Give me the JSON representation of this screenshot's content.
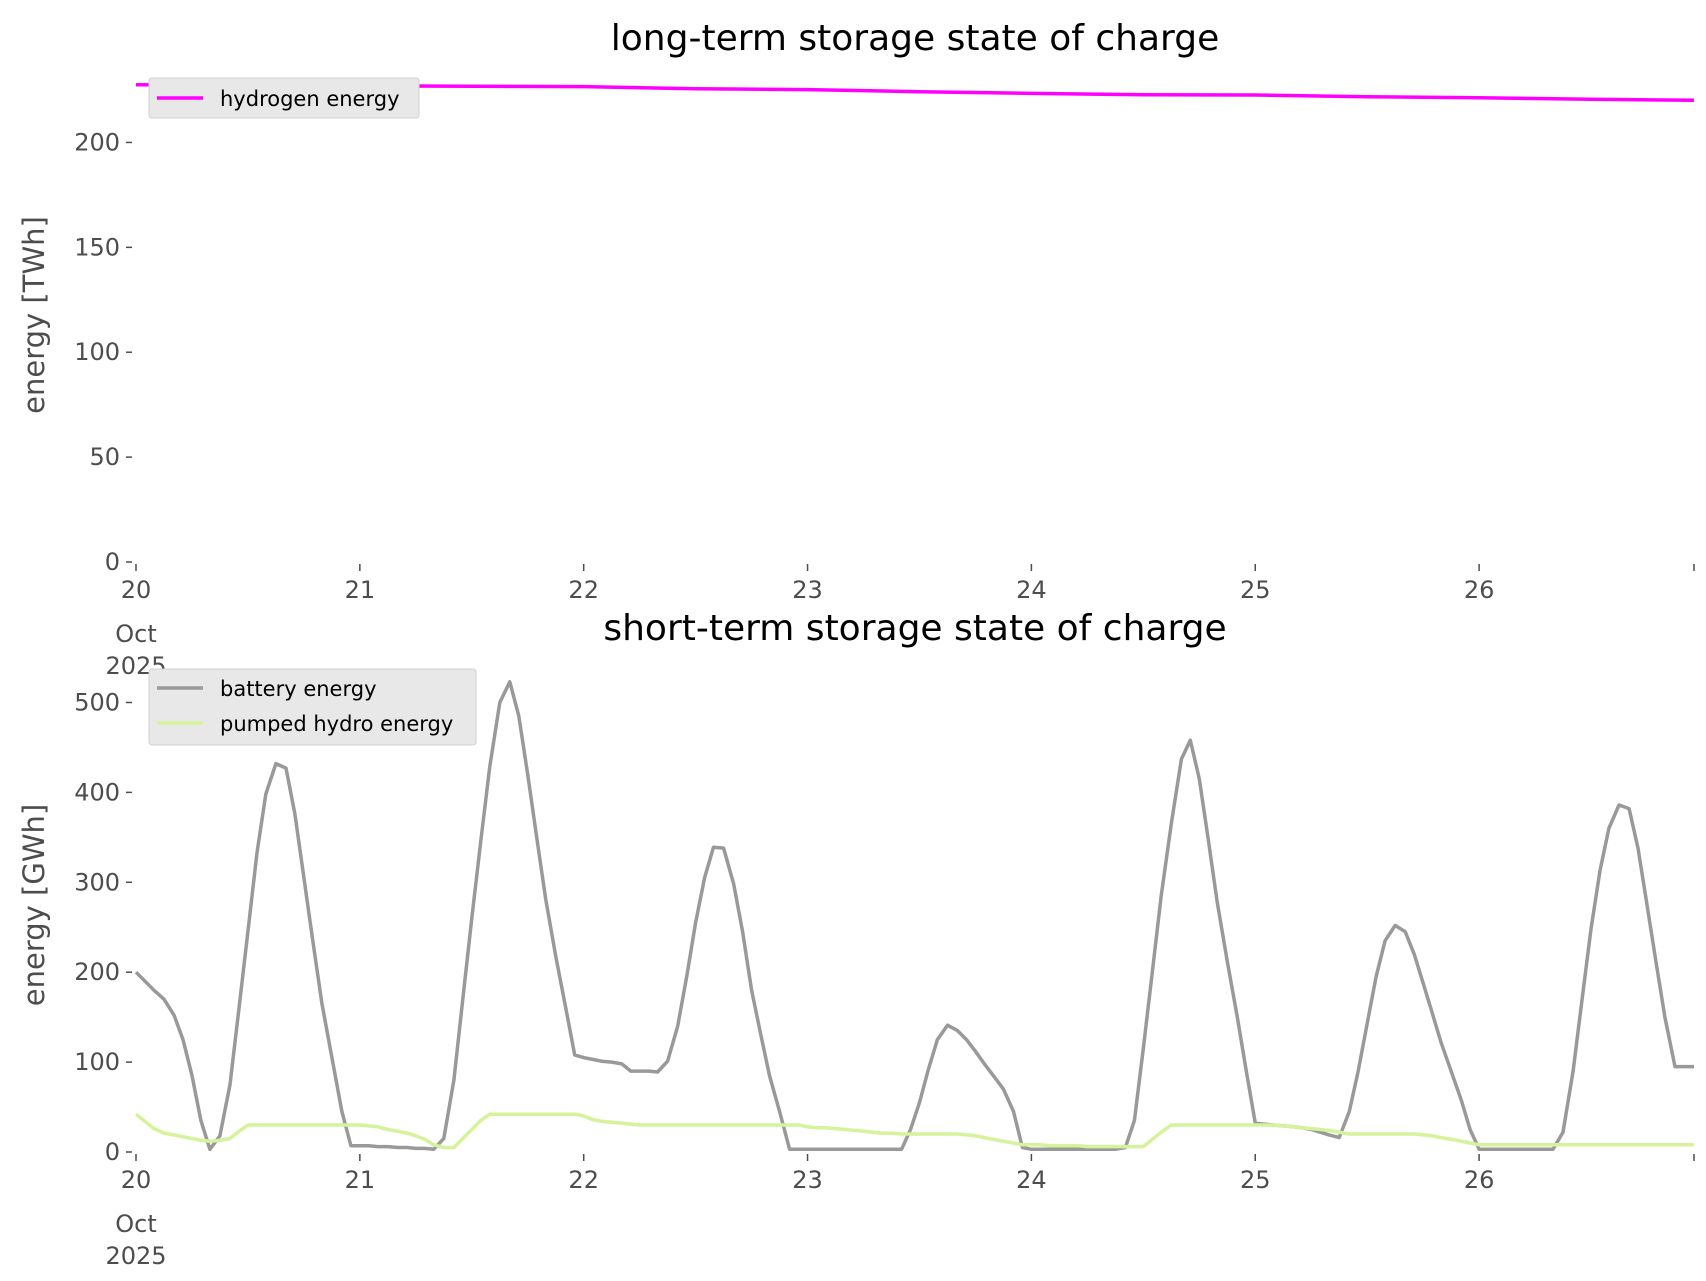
{
  "colors": {
    "hydrogen": "#ff00ff",
    "battery": "#999999",
    "pumped_hydro": "#d4f39a",
    "legend_bg": "#e8e8e8",
    "axis_text": "#4d4d4d"
  },
  "chart_data": [
    {
      "type": "line",
      "title": "long-term storage state of charge",
      "ylabel": "energy [TWh]",
      "ylim": [
        0,
        225
      ],
      "yticks": [
        0,
        50,
        100,
        150,
        200
      ],
      "x_date_ticks": [
        "20",
        "21",
        "22",
        "23",
        "24",
        "25",
        "26",
        ""
      ],
      "x_ticks_pos": [
        0,
        1,
        2,
        3,
        4,
        5,
        6,
        6.96
      ],
      "x_first_tick_sub": [
        "Oct",
        "2025"
      ],
      "xlim": [
        0,
        6.96
      ],
      "legend": "top-left",
      "grid": false,
      "series": [
        {
          "name": "hydrogen energy",
          "color": "hydrogen",
          "x": [
            0,
            0.5,
            1,
            1.5,
            2,
            2.5,
            3,
            3.5,
            4,
            4.5,
            5,
            5.5,
            6,
            6.5,
            6.96
          ],
          "y": [
            227.5,
            227.3,
            227.0,
            226.8,
            226.6,
            225.6,
            225.2,
            224.2,
            223.4,
            222.7,
            222.6,
            221.8,
            221.3,
            220.6,
            220.1
          ]
        }
      ]
    },
    {
      "type": "line",
      "title": "short-term storage state of charge",
      "ylabel": "energy [GWh]",
      "ylim": [
        0,
        525
      ],
      "yticks": [
        0,
        100,
        200,
        300,
        400,
        500
      ],
      "x_date_ticks": [
        "20",
        "21",
        "22",
        "23",
        "24",
        "25",
        "26",
        ""
      ],
      "x_ticks_pos": [
        0,
        1,
        2,
        3,
        4,
        5,
        6,
        6.96
      ],
      "x_first_tick_sub": [
        "Oct",
        "2025"
      ],
      "xlim": [
        0,
        6.96
      ],
      "legend": "top-left",
      "grid": false,
      "series": [
        {
          "name": "battery energy",
          "color": "battery",
          "x": [
            0,
            0.04,
            0.08,
            0.125,
            0.17,
            0.21,
            0.25,
            0.29,
            0.33,
            0.375,
            0.42,
            0.46,
            0.5,
            0.54,
            0.58,
            0.625,
            0.67,
            0.71,
            0.75,
            0.79,
            0.83,
            0.875,
            0.92,
            0.96,
            1.0,
            1.04,
            1.08,
            1.125,
            1.17,
            1.21,
            1.25,
            1.29,
            1.33,
            1.375,
            1.42,
            1.46,
            1.5,
            1.54,
            1.58,
            1.625,
            1.67,
            1.71,
            1.75,
            1.79,
            1.83,
            1.875,
            1.92,
            1.96,
            2.0,
            2.04,
            2.08,
            2.125,
            2.17,
            2.21,
            2.25,
            2.29,
            2.33,
            2.375,
            2.42,
            2.46,
            2.5,
            2.54,
            2.58,
            2.625,
            2.67,
            2.71,
            2.75,
            2.79,
            2.83,
            2.875,
            2.92,
            2.96,
            3.0,
            3.04,
            3.08,
            3.125,
            3.17,
            3.21,
            3.25,
            3.29,
            3.33,
            3.375,
            3.42,
            3.46,
            3.5,
            3.54,
            3.58,
            3.625,
            3.67,
            3.71,
            3.75,
            3.79,
            3.83,
            3.875,
            3.92,
            3.96,
            4.0,
            4.04,
            4.08,
            4.125,
            4.17,
            4.21,
            4.25,
            4.29,
            4.33,
            4.375,
            4.42,
            4.46,
            4.5,
            4.54,
            4.58,
            4.625,
            4.67,
            4.71,
            4.75,
            4.79,
            4.83,
            4.875,
            4.92,
            4.96,
            5.0,
            5.04,
            5.08,
            5.125,
            5.17,
            5.21,
            5.25,
            5.29,
            5.33,
            5.375,
            5.42,
            5.46,
            5.5,
            5.54,
            5.58,
            5.625,
            5.67,
            5.71,
            5.75,
            5.79,
            5.83,
            5.875,
            5.92,
            5.96,
            6.0,
            6.04,
            6.08,
            6.125,
            6.17,
            6.21,
            6.25,
            6.29,
            6.33,
            6.375,
            6.42,
            6.46,
            6.5,
            6.54,
            6.58,
            6.625,
            6.67,
            6.71,
            6.75,
            6.79,
            6.83,
            6.875,
            6.92,
            6.96
          ],
          "y": [
            200,
            190,
            180,
            170,
            152,
            125,
            85,
            35,
            3,
            18,
            75,
            160,
            245,
            332,
            398,
            432,
            427,
            376,
            305,
            235,
            166,
            105,
            45,
            7,
            7,
            7,
            6,
            6,
            5,
            5,
            4,
            4,
            3,
            15,
            80,
            170,
            260,
            345,
            428,
            500,
            523,
            485,
            420,
            350,
            282,
            218,
            160,
            108,
            105,
            103,
            101,
            100,
            98,
            90,
            90,
            90,
            89,
            101,
            140,
            195,
            255,
            305,
            339,
            338,
            298,
            245,
            180,
            132,
            85,
            45,
            3,
            3,
            3,
            3,
            3,
            3,
            3,
            3,
            3,
            3,
            3,
            3,
            3,
            25,
            55,
            92,
            125,
            141,
            135,
            125,
            112,
            98,
            85,
            70,
            45,
            5,
            3,
            3,
            3,
            3,
            3,
            3,
            3,
            3,
            3,
            3,
            5,
            35,
            115,
            200,
            285,
            365,
            437,
            458,
            415,
            348,
            278,
            212,
            150,
            90,
            32,
            31,
            30,
            29,
            28,
            27,
            25,
            22,
            19,
            16,
            45,
            90,
            143,
            195,
            235,
            252,
            245,
            220,
            188,
            155,
            122,
            90,
            58,
            25,
            3,
            3,
            3,
            3,
            3,
            3,
            3,
            3,
            3,
            22,
            90,
            170,
            248,
            313,
            360,
            386,
            382,
            338,
            275,
            212,
            150,
            95,
            95,
            95
          ]
        },
        {
          "name": "pumped hydro energy",
          "color": "pumped_hydro",
          "x": [
            0,
            0.04,
            0.08,
            0.125,
            0.17,
            0.21,
            0.25,
            0.29,
            0.33,
            0.375,
            0.42,
            0.46,
            0.5,
            0.54,
            0.58,
            0.625,
            0.67,
            0.71,
            0.75,
            0.79,
            0.83,
            0.875,
            0.92,
            0.96,
            1.0,
            1.04,
            1.08,
            1.125,
            1.17,
            1.21,
            1.25,
            1.29,
            1.33,
            1.375,
            1.42,
            1.46,
            1.5,
            1.54,
            1.58,
            1.625,
            1.67,
            1.71,
            1.75,
            1.79,
            1.83,
            1.875,
            1.92,
            1.96,
            2.0,
            2.04,
            2.08,
            2.125,
            2.17,
            2.21,
            2.25,
            2.29,
            2.33,
            2.375,
            2.42,
            2.46,
            2.5,
            2.54,
            2.58,
            2.625,
            2.67,
            2.71,
            2.75,
            2.79,
            2.83,
            2.875,
            2.92,
            2.96,
            3.0,
            3.04,
            3.08,
            3.125,
            3.17,
            3.21,
            3.25,
            3.29,
            3.33,
            3.375,
            3.42,
            3.46,
            3.5,
            3.54,
            3.58,
            3.625,
            3.67,
            3.71,
            3.75,
            3.79,
            3.83,
            3.875,
            3.92,
            3.96,
            4.0,
            4.04,
            4.08,
            4.125,
            4.17,
            4.21,
            4.25,
            4.29,
            4.33,
            4.375,
            4.42,
            4.46,
            4.5,
            4.54,
            4.58,
            4.625,
            4.67,
            4.71,
            4.75,
            4.79,
            4.83,
            4.875,
            4.92,
            4.96,
            5.0,
            5.04,
            5.08,
            5.125,
            5.17,
            5.21,
            5.25,
            5.29,
            5.33,
            5.375,
            5.42,
            5.46,
            5.5,
            5.54,
            5.58,
            5.625,
            5.67,
            5.71,
            5.75,
            5.79,
            5.83,
            5.875,
            5.92,
            5.96,
            6.0,
            6.04,
            6.08,
            6.125,
            6.17,
            6.21,
            6.25,
            6.29,
            6.33,
            6.375,
            6.42,
            6.46,
            6.5,
            6.54,
            6.58,
            6.625,
            6.67,
            6.71,
            6.75,
            6.79,
            6.83,
            6.875,
            6.92,
            6.96
          ],
          "y": [
            42,
            34,
            26,
            21,
            19,
            17,
            15,
            13,
            12,
            13,
            15,
            23,
            30,
            30,
            30,
            30,
            30,
            30,
            30,
            30,
            30,
            30,
            30,
            30,
            30,
            29,
            28,
            25,
            23,
            21,
            18,
            14,
            8,
            5,
            5,
            15,
            25,
            35,
            42,
            42,
            42,
            42,
            42,
            42,
            42,
            42,
            42,
            42,
            40,
            36,
            34,
            33,
            32,
            31,
            30,
            30,
            30,
            30,
            30,
            30,
            30,
            30,
            30,
            30,
            30,
            30,
            30,
            30,
            30,
            30,
            30,
            30,
            28,
            27,
            27,
            26,
            25,
            24,
            23,
            22,
            21,
            21,
            20,
            20,
            20,
            20,
            20,
            20,
            20,
            19,
            18,
            16,
            14,
            12,
            10,
            8,
            8,
            8,
            7,
            7,
            7,
            7,
            6,
            6,
            6,
            6,
            6,
            6,
            6,
            14,
            22,
            30,
            30,
            30,
            30,
            30,
            30,
            30,
            30,
            30,
            30,
            30,
            30,
            29,
            28,
            27,
            26,
            25,
            24,
            22,
            20,
            20,
            20,
            20,
            20,
            20,
            20,
            20,
            19,
            18,
            16,
            14,
            12,
            10,
            8,
            8,
            8,
            8,
            8,
            8,
            8,
            8,
            8,
            8,
            8,
            8,
            8,
            8,
            8,
            8,
            8,
            8,
            8,
            8,
            8,
            8,
            8,
            8
          ]
        }
      ]
    }
  ]
}
